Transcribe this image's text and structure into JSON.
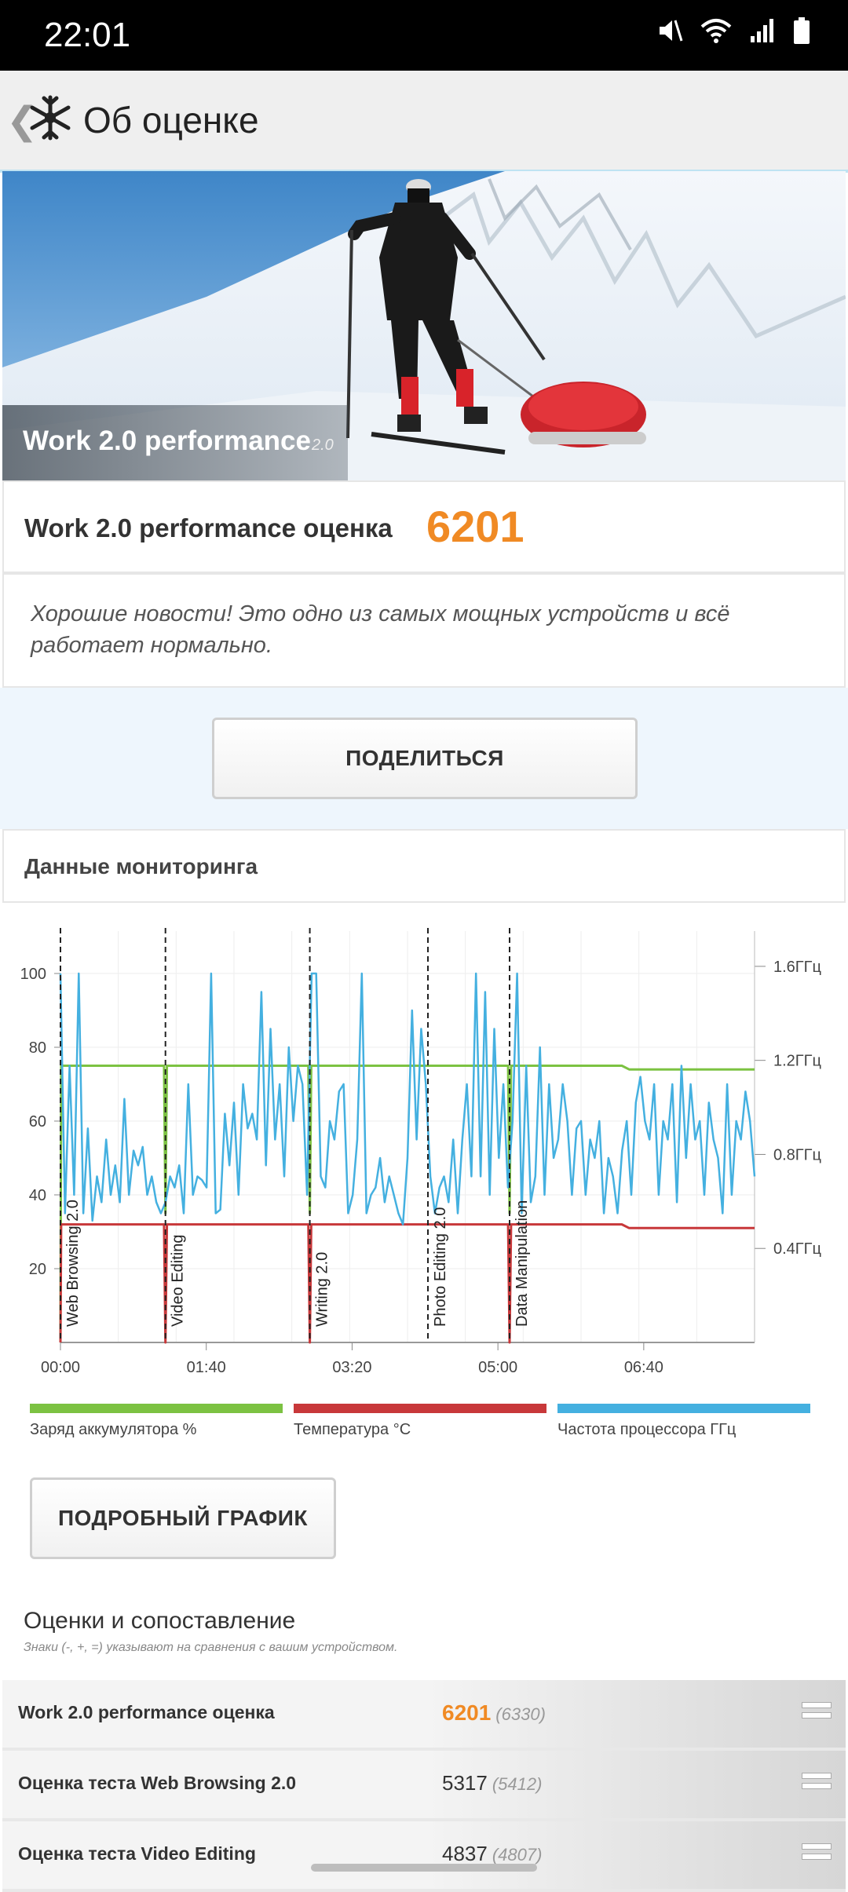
{
  "status": {
    "time": "22:01"
  },
  "appbar": {
    "title": "Об оценке"
  },
  "hero": {
    "title": "Work 2.0 performance",
    "version": "2.0"
  },
  "score": {
    "label": "Work 2.0 performance оценка",
    "value": "6201"
  },
  "news": "Хорошие новости! Это одно из самых мощных устройств и всё работает нормально.",
  "share_label": "ПОДЕЛИТЬСЯ",
  "monitoring_title": "Данные мониторинга",
  "detail_button": "ПОДРОБНЫЙ ГРАФИК",
  "chart_data": {
    "type": "line",
    "x_ticks": [
      "00:00",
      "01:40",
      "03:20",
      "05:00",
      "06:40"
    ],
    "y_left_ticks": [
      "20",
      "40",
      "60",
      "80",
      "100"
    ],
    "y_right_ticks": [
      "0.4ГГц",
      "0.8ГГц",
      "1.2ГГц",
      "1.6ГГц"
    ],
    "ylim_left": [
      0,
      100
    ],
    "ylim_right_ghz": [
      0,
      1.75
    ],
    "xlim_minutes": [
      0,
      476
    ],
    "test_markers": [
      {
        "label": "Web Browsing 2.0",
        "minute": 0
      },
      {
        "label": "Video Editing",
        "minute": 72
      },
      {
        "label": "Writing 2.0",
        "minute": 171
      },
      {
        "label": "Photo Editing 2.0",
        "minute": 252
      },
      {
        "label": "Data Manipulation",
        "minute": 308
      }
    ],
    "series": [
      {
        "name": "Заряд аккумулятора %",
        "color": "#7cc242",
        "points": [
          [
            0,
            0
          ],
          [
            0.5,
            75
          ],
          [
            71,
            75
          ],
          [
            72,
            35
          ],
          [
            73,
            75
          ],
          [
            170,
            75
          ],
          [
            171,
            35
          ],
          [
            172,
            75
          ],
          [
            307,
            75
          ],
          [
            308,
            35
          ],
          [
            309,
            75
          ],
          [
            385,
            75
          ],
          [
            390,
            74
          ],
          [
            476,
            74
          ]
        ]
      },
      {
        "name": "Температура °C",
        "color": "#c8383a",
        "points": [
          [
            0,
            0
          ],
          [
            0.5,
            32
          ],
          [
            71,
            32
          ],
          [
            72,
            0
          ],
          [
            73,
            32
          ],
          [
            170,
            32
          ],
          [
            171,
            0
          ],
          [
            172,
            32
          ],
          [
            307,
            32
          ],
          [
            308,
            0
          ],
          [
            309,
            32
          ],
          [
            385,
            32
          ],
          [
            390,
            31
          ],
          [
            476,
            31
          ]
        ]
      },
      {
        "name": "Частота процессора ГГц",
        "color": "#44b0e0",
        "values_percent": [
          100,
          35,
          75,
          40,
          100,
          35,
          58,
          33,
          45,
          38,
          55,
          40,
          48,
          38,
          66,
          40,
          52,
          48,
          53,
          40,
          45,
          38,
          35,
          38,
          45,
          42,
          48,
          35,
          70,
          40,
          45,
          44,
          42,
          100,
          35,
          36,
          62,
          48,
          65,
          40,
          70,
          58,
          62,
          55,
          95,
          48,
          85,
          55,
          70,
          45,
          80,
          60,
          75,
          70,
          40,
          100,
          100,
          45,
          42,
          60,
          55,
          68,
          70,
          35,
          40,
          55,
          100,
          35,
          40,
          42,
          50,
          38,
          45,
          40,
          35,
          32,
          50,
          90,
          55,
          85,
          70,
          45,
          35,
          42,
          45,
          38,
          55,
          35,
          55,
          70,
          45,
          100,
          45,
          95,
          40,
          85,
          50,
          70,
          42,
          60,
          100,
          35,
          75,
          38,
          45,
          80,
          40,
          70,
          50,
          55,
          70,
          60,
          40,
          58,
          60,
          40,
          55,
          50,
          60,
          35,
          50,
          45,
          35,
          52,
          60,
          40,
          65,
          72,
          60,
          55,
          70,
          40,
          60,
          55,
          70,
          38,
          75,
          50,
          70,
          55,
          60,
          40,
          65,
          55,
          50,
          35,
          70,
          40,
          60,
          55,
          68,
          60,
          45
        ]
      }
    ]
  },
  "legend": [
    {
      "label": "Заряд аккумулятора %",
      "color": "#7cc242"
    },
    {
      "label": "Температура °C",
      "color": "#c8383a"
    },
    {
      "label": "Частота процессора ГГц",
      "color": "#44b0e0"
    }
  ],
  "scores_section": {
    "title": "Оценки и сопоставление",
    "subtitle": "Знаки (-, +, =) указывают на сравнения с вашим устройством."
  },
  "score_rows": [
    {
      "name": "Work 2.0 performance оценка",
      "value": "6201",
      "compare": "(6330)"
    },
    {
      "name": "Оценка теста Web Browsing 2.0",
      "value": "5317",
      "compare": "(5412)"
    },
    {
      "name": "Оценка теста Video Editing",
      "value": "4837",
      "compare": "(4807)"
    }
  ]
}
